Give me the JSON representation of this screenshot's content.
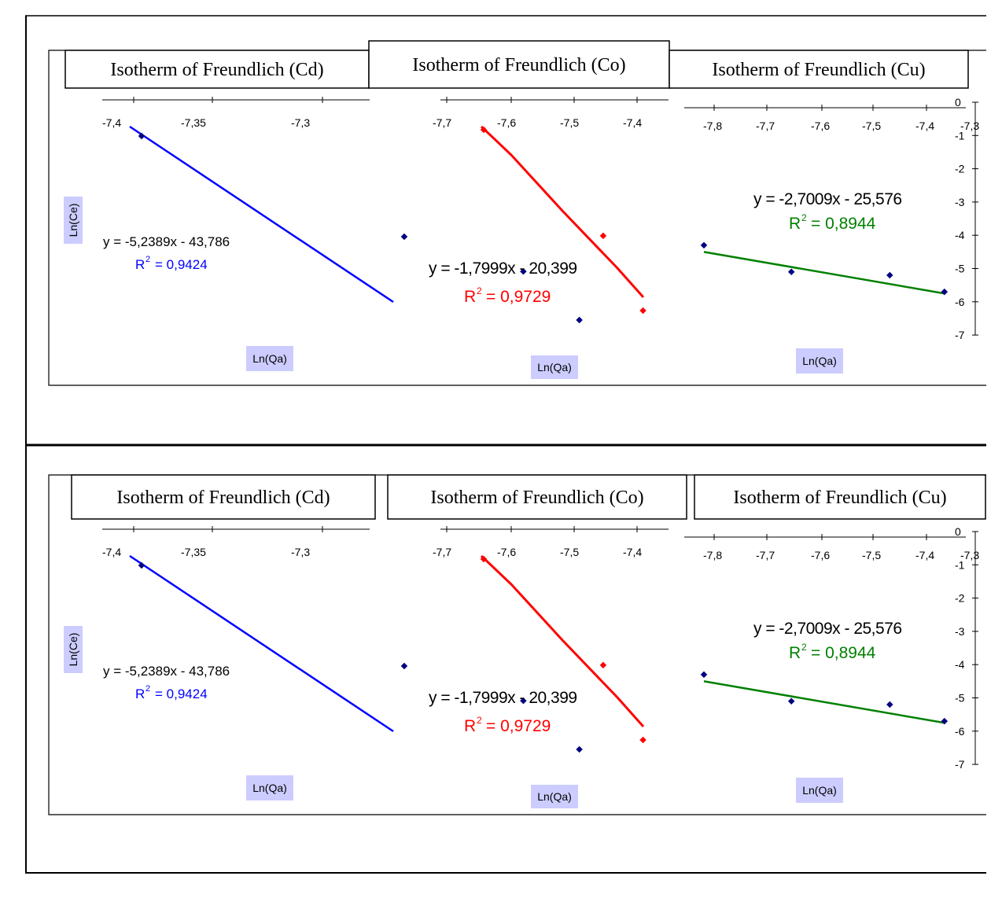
{
  "figure_rows": [
    {
      "panels": [
        {
          "title": "Isotherm of Freundlich (Cd)",
          "equation": "y = -5,2389x - 43,786",
          "r2_text": "= 0,9424",
          "xlabel": "Ln(Qa)",
          "ylabel": "Ln(Ce)"
        },
        {
          "title": "Isotherm of Freundlich (Co)",
          "equation": "y = -1,7999x - 20,399",
          "r2_text": "= 0,9729",
          "xlabel": "Ln(Qa)",
          "ylabel": ""
        },
        {
          "title": "Isotherm of Freundlich (Cu)",
          "equation": "y = -2,7009x - 25,576",
          "r2_text": "= 0,8944",
          "xlabel": "Ln(Qa)",
          "ylabel": ""
        }
      ]
    },
    {
      "panels": [
        {
          "title": "Isotherm of Freundlich (Cd)",
          "equation": "y = -5,2389x - 43,786",
          "r2_text": "= 0,9424",
          "xlabel": "Ln(Qa)",
          "ylabel": "Ln(Ce)"
        },
        {
          "title": "Isotherm of Freundlich (Co)",
          "equation": "y = -1,7999x - 20,399",
          "r2_text": "= 0,9729",
          "xlabel": "Ln(Qa)",
          "ylabel": ""
        },
        {
          "title": "Isotherm of Freundlich (Cu)",
          "equation": "y = -2,7009x - 25,576",
          "r2_text": "= 0,8944",
          "xlabel": "Ln(Qa)",
          "ylabel": ""
        }
      ]
    }
  ],
  "colors": {
    "cd_line": "#0000ff",
    "co_line": "#ff0000",
    "cu_line": "#008000",
    "point": "#000080",
    "label_bg": "#ccccff"
  },
  "chart_data": [
    {
      "type": "scatter",
      "title": "Isotherm of Freundlich (Cd)",
      "xlabel": "Ln(Qa)",
      "ylabel": "Ln(Ce)",
      "x_ticks": [
        "-7,4",
        "-7,35",
        "-7,3"
      ],
      "points": [
        {
          "x": -7.391,
          "y": -0.6
        },
        {
          "x": -7.316,
          "y": -3.5
        },
        {
          "x": -7.282,
          "y": -4.5
        },
        {
          "x": -7.266,
          "y": -5.9
        }
      ],
      "trendline": {
        "equation": "y = -5,2389x - 43,786",
        "r_squared": "0,9424",
        "color": "#0000ff"
      }
    },
    {
      "type": "scatter",
      "title": "Isotherm of Freundlich (Co)",
      "xlabel": "Ln(Qa)",
      "ylabel": "",
      "x_ticks": [
        "-7,7",
        "-7,6",
        "-7,5",
        "-7,4"
      ],
      "points": [
        {
          "x": -7.63,
          "y": -0.9
        },
        {
          "x": -7.45,
          "y": -3.95
        },
        {
          "x": -7.39,
          "y": -6.1
        }
      ],
      "trendline": {
        "equation": "y = -1,7999x - 20,399",
        "r_squared": "0,9729",
        "color": "#ff0000"
      }
    },
    {
      "type": "scatter",
      "title": "Isotherm of Freundlich (Cu)",
      "xlabel": "Ln(Qa)",
      "ylabel": "",
      "x_ticks": [
        "-7,8",
        "-7,7",
        "-7,6",
        "-7,5",
        "-7,4",
        "-7,3"
      ],
      "y_ticks": [
        "0",
        "-1",
        "-2",
        "-3",
        "-4",
        "-5",
        "-6",
        "-7"
      ],
      "ylim": [
        -7,
        0
      ],
      "points": [
        {
          "x": -7.81,
          "y": -4.3
        },
        {
          "x": -7.65,
          "y": -5.1
        },
        {
          "x": -7.47,
          "y": -5.2
        },
        {
          "x": -7.37,
          "y": -5.7
        }
      ],
      "trendline": {
        "equation": "y = -2,7009x - 25,576",
        "r_squared": "0,8944",
        "color": "#008000"
      }
    }
  ]
}
